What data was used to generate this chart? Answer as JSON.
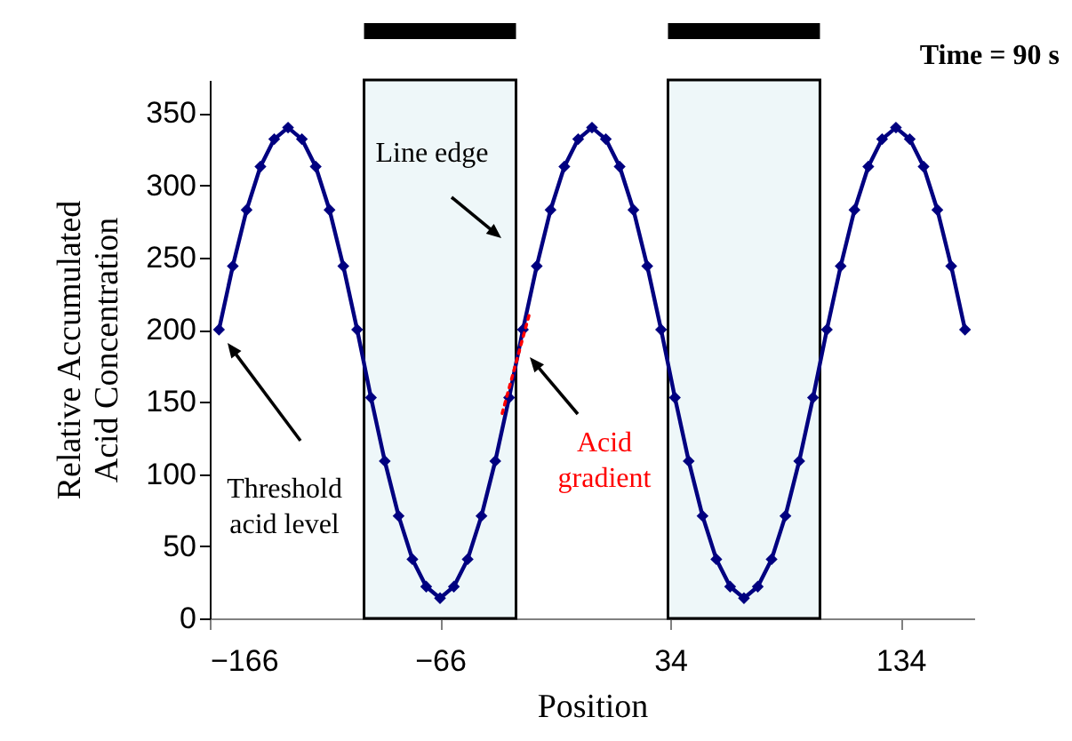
{
  "chart_data": {
    "type": "line",
    "title": "Time = 90 s",
    "xlabel": "Position",
    "ylabel": "Relative Accumulated Acid Concentration",
    "xlim": [
      -166,
      166
    ],
    "ylim": [
      0,
      373
    ],
    "xticks": [
      -166,
      -66,
      34,
      134
    ],
    "yticks": [
      0,
      50,
      100,
      150,
      200,
      250,
      300,
      350
    ],
    "marker": "diamond",
    "line_style": "solid",
    "series": [
      {
        "color": "#000080",
        "x": [
          -162,
          -156,
          -150,
          -144,
          -138,
          -132,
          -126,
          -120,
          -114,
          -108,
          -102,
          -96,
          -90,
          -84,
          -78,
          -72,
          -66,
          -60,
          -54,
          -48,
          -42,
          -36,
          -30,
          -24,
          -18,
          -12,
          -6,
          0,
          6,
          12,
          18,
          24,
          30,
          36,
          42,
          48,
          54,
          60,
          66,
          72,
          78,
          84,
          90,
          96,
          102,
          108,
          114,
          120,
          126,
          132,
          138,
          144,
          150,
          156,
          162
        ],
        "values": [
          200,
          244,
          283,
          313,
          332,
          340,
          332,
          313,
          283,
          244,
          200,
          153,
          109,
          71,
          41,
          22,
          14,
          22,
          41,
          71,
          109,
          153,
          200,
          244,
          283,
          313,
          332,
          340,
          332,
          313,
          283,
          244,
          200,
          153,
          109,
          71,
          41,
          22,
          14,
          22,
          41,
          71,
          109,
          153,
          200,
          244,
          283,
          313,
          332,
          340,
          332,
          313,
          283,
          244,
          200
        ]
      },
      {
        "type": "line",
        "color": "#ff0000",
        "line_style": "dotted",
        "marker": "none",
        "x": [
          -39,
          -27
        ],
        "values": [
          142,
          212
        ]
      }
    ],
    "bands": [
      {
        "axis": "x",
        "from": -99,
        "to": -33,
        "color": "#eef7f9"
      },
      {
        "axis": "x",
        "from": 33,
        "to": 99,
        "color": "#eef7f9"
      }
    ],
    "annotations": [
      "Threshold acid level",
      "Line edge",
      "Acid gradient"
    ]
  }
}
